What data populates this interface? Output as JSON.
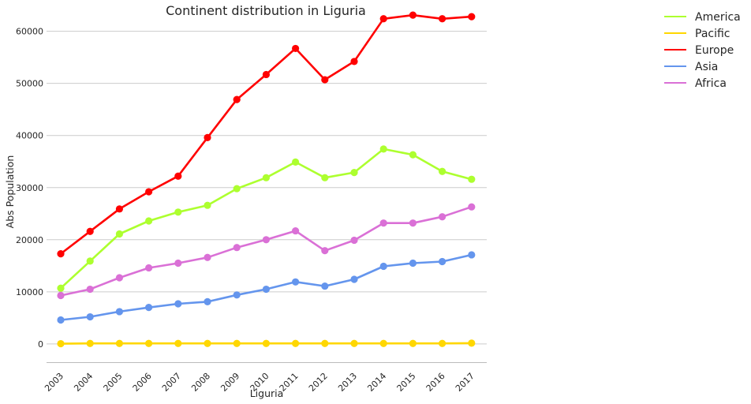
{
  "chart_data": {
    "type": "line",
    "title": "Continent distribution in Liguria",
    "xlabel": "Liguria",
    "ylabel": "Abs Population",
    "x": [
      "2003",
      "2004",
      "2005",
      "2006",
      "2007",
      "2008",
      "2009",
      "2010",
      "2011",
      "2012",
      "2013",
      "2014",
      "2015",
      "2016",
      "2017"
    ],
    "ylim": [
      -3500,
      66000
    ],
    "yticks": [
      0,
      10000,
      20000,
      30000,
      40000,
      50000,
      60000
    ],
    "grid": "horizontal",
    "legend_position": "top-right outside",
    "series": [
      {
        "name": "America",
        "color": "#adff2f",
        "values": [
          10700,
          15900,
          21100,
          23600,
          25300,
          26600,
          29800,
          31900,
          34900,
          31900,
          32900,
          37400,
          36300,
          33100,
          31600
        ]
      },
      {
        "name": "Pacific",
        "color": "#ffd700",
        "values": [
          50,
          100,
          100,
          100,
          100,
          100,
          100,
          100,
          100,
          100,
          100,
          100,
          100,
          100,
          150
        ]
      },
      {
        "name": "Europe",
        "color": "#ff0000",
        "values": [
          17300,
          21600,
          25900,
          29200,
          32200,
          39600,
          46900,
          51700,
          56700,
          50700,
          54200,
          62400,
          63100,
          62400,
          62800
        ]
      },
      {
        "name": "Asia",
        "color": "#6495ed",
        "values": [
          4600,
          5200,
          6200,
          7000,
          7700,
          8100,
          9400,
          10500,
          11900,
          11100,
          12400,
          14900,
          15500,
          15800,
          17100
        ]
      },
      {
        "name": "Africa",
        "color": "#da70d6",
        "values": [
          9300,
          10500,
          12700,
          14600,
          15500,
          16600,
          18500,
          20000,
          21700,
          17900,
          19900,
          23200,
          23200,
          24400,
          26300
        ]
      }
    ]
  }
}
